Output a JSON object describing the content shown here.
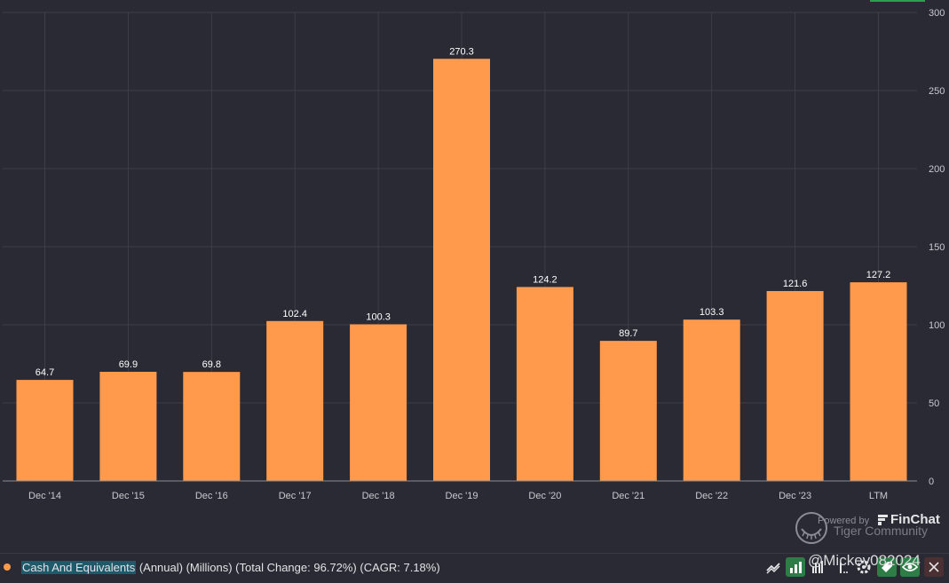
{
  "chart_data": {
    "type": "bar",
    "categories": [
      "Dec '14",
      "Dec '15",
      "Dec '16",
      "Dec '17",
      "Dec '18",
      "Dec '19",
      "Dec '20",
      "Dec '21",
      "Dec '22",
      "Dec '23",
      "LTM"
    ],
    "values": [
      64.7,
      69.9,
      69.8,
      102.4,
      100.3,
      270.3,
      124.2,
      89.7,
      103.3,
      121.6,
      127.2
    ],
    "data_labels": [
      "64.7",
      "69.9",
      "69.8",
      "102.4",
      "100.3",
      "270.3",
      "124.2",
      "89.7",
      "103.3",
      "121.6",
      "127.2"
    ],
    "y_ticks": [
      "0",
      "50",
      "100",
      "150",
      "200",
      "250",
      "300"
    ],
    "ylim": [
      0,
      300
    ],
    "y_axis_side": "right",
    "grid": true,
    "bar_color": "#ff9a4c",
    "background": "#292a33"
  },
  "legend": {
    "series_name": "Cash And Equivalents",
    "details": " (Annual) (Millions) (Total Change: 96.72%) (CAGR: 7.18%)",
    "dot_color": "#ff9a4c"
  },
  "watermark": {
    "powered_by": "Powered by",
    "brand": "FinChat",
    "community": "Tiger Community"
  },
  "handle": "@Mickey082024",
  "toolbar": {
    "icons": [
      "line-chart-icon",
      "bar-chart-icon",
      "grouped-bar-icon",
      "more-icon",
      "settings-icon",
      "tag-icon",
      "eye-icon",
      "close-icon"
    ]
  }
}
